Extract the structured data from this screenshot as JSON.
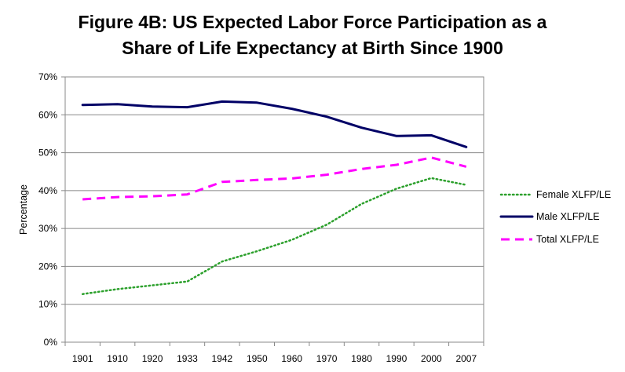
{
  "chart_data": {
    "type": "line",
    "title_line1": "Figure 4B: US Expected Labor Force Participation as a",
    "title_line2": "Share of Life Expectancy at Birth Since 1900",
    "xlabel": "",
    "ylabel": "Percentage",
    "categories": [
      "1901",
      "1910",
      "1920",
      "1933",
      "1942",
      "1950",
      "1960",
      "1970",
      "1980",
      "1990",
      "2000",
      "2007"
    ],
    "yticks": [
      "0%",
      "10%",
      "20%",
      "30%",
      "40%",
      "50%",
      "60%",
      "70%"
    ],
    "ylim": [
      0,
      70
    ],
    "grid": true,
    "legend_position": "right",
    "series": [
      {
        "name": "Female XLFP/LE",
        "color": "#2ca02c",
        "style": "dotted",
        "values": [
          12.7,
          14.0,
          15.0,
          16.0,
          21.3,
          24.0,
          27.0,
          31.0,
          36.5,
          40.5,
          43.3,
          41.5
        ]
      },
      {
        "name": "Male XLFP/LE",
        "color": "#000066",
        "style": "solid",
        "values": [
          62.6,
          62.8,
          62.2,
          62.0,
          63.5,
          63.2,
          61.6,
          59.5,
          56.6,
          54.4,
          54.6,
          51.5
        ]
      },
      {
        "name": "Total XLFP/LE",
        "color": "#ff00ff",
        "style": "dashed",
        "values": [
          37.7,
          38.3,
          38.5,
          39.0,
          42.3,
          42.8,
          43.2,
          44.2,
          45.7,
          46.8,
          48.7,
          46.3
        ]
      }
    ]
  }
}
